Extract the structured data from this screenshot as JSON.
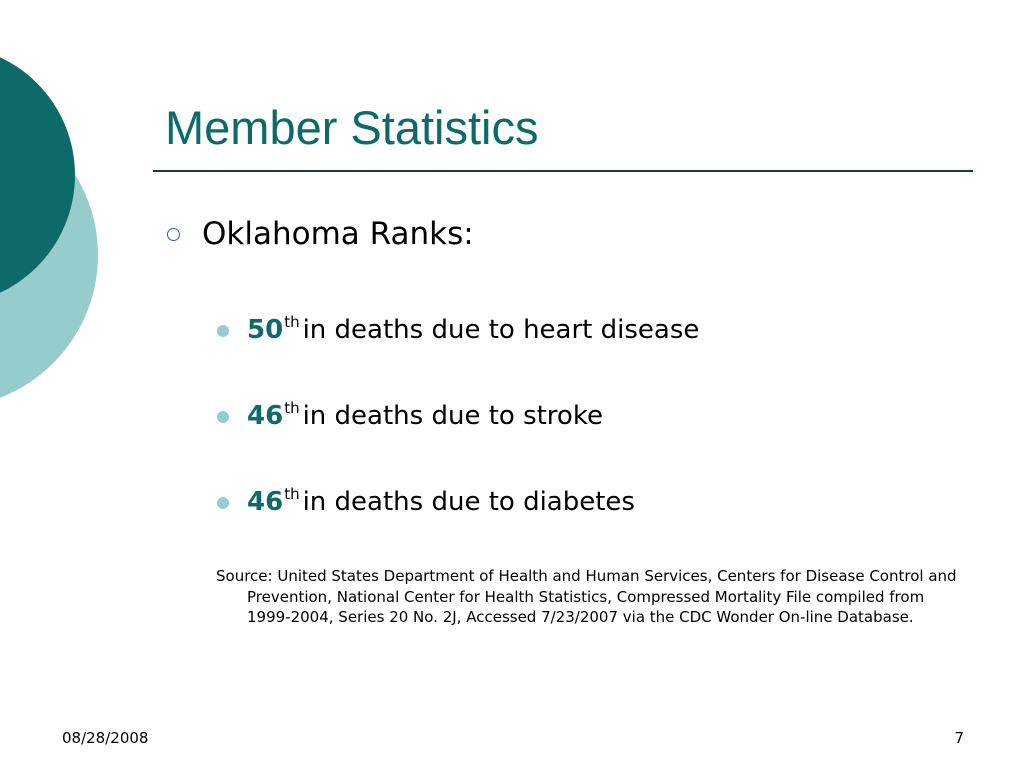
{
  "slide": {
    "title": "Member Statistics",
    "heading": "Oklahoma Ranks:",
    "items": [
      {
        "rank": "50",
        "suffix": "th",
        "text": "in deaths due to heart disease"
      },
      {
        "rank": "46",
        "suffix": "th",
        "text": "in deaths due to stroke"
      },
      {
        "rank": "46",
        "suffix": "th",
        "text": "in deaths due to diabetes"
      }
    ],
    "source": "Source: United States Department of Health and Human Services, Centers for Disease Control and Prevention, National Center for Health Statistics, Compressed Mortality File compiled from 1999-2004, Series 20 No. 2J, Accessed 7/23/2007 via the CDC Wonder On-line Database."
  },
  "footer": {
    "date": "08/28/2008",
    "page_number": "7"
  },
  "colors": {
    "title": "#0e6a68",
    "dark_teal": "#0e6a68",
    "light_teal": "#96cccc",
    "bullet": "#96cccc"
  },
  "icons": {
    "level1_bullet": "hollow-circle-icon",
    "level2_bullet": "filled-circle-icon"
  }
}
